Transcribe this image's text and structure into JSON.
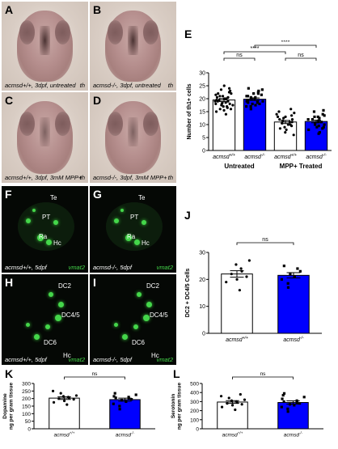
{
  "panels": {
    "A": {
      "letter": "A",
      "caption": "acmsd+/+, 3dpf, untreated",
      "stain": "th"
    },
    "B": {
      "letter": "B",
      "caption": "acmsd-/-, 3dpf, untreated",
      "stain": "th"
    },
    "C": {
      "letter": "C",
      "caption": "acmsd+/+, 3dpf, 3mM MPP+",
      "stain": "th"
    },
    "D": {
      "letter": "D",
      "caption": "acmsd-/-, 3dpf, 3mM MPP+",
      "stain": "th"
    },
    "F": {
      "letter": "F",
      "caption": "acmsd+/+, 5dpf",
      "stain": "vmat2",
      "labels": [
        "Te",
        "PT",
        "Ra",
        "Hc"
      ]
    },
    "G": {
      "letter": "G",
      "caption": "acmsd-/-, 5dpf",
      "stain": "vmat2",
      "labels": [
        "Te",
        "PT",
        "Ra",
        "Hc"
      ]
    },
    "H": {
      "letter": "H",
      "caption": "acmsd+/+, 5dpf",
      "stain": "vmat2",
      "labels": [
        "DC2",
        "DC4/5",
        "DC6",
        "Hc"
      ]
    },
    "I": {
      "letter": "I",
      "caption": "acmsd-/-, 5dpf",
      "stain": "vmat2",
      "labels": [
        "DC2",
        "DC4/5",
        "DC6",
        "Hc"
      ]
    }
  },
  "colors": {
    "wt": "#ffffff",
    "ko": "#0000ff",
    "outline": "#000000",
    "fluor": "#44d64a"
  },
  "chart_data": [
    {
      "letter": "E",
      "type": "bar",
      "ylabel": "Number of th1+ cells",
      "categories": [
        "acmsd+/+",
        "acmsd-/-",
        "acmsd+/+",
        "acmsd-/-"
      ],
      "groups": [
        "Untreated",
        "MPP+ Treated"
      ],
      "values": [
        19.5,
        19.8,
        11.0,
        11.2
      ],
      "errors": [
        0.6,
        0.5,
        0.6,
        0.5
      ],
      "colors": [
        "#ffffff",
        "#0000ff",
        "#ffffff",
        "#0000ff"
      ],
      "ylim": [
        0,
        30
      ],
      "yticks": [
        0,
        5,
        10,
        15,
        20,
        25,
        30
      ],
      "annotations": [
        {
          "from": 0,
          "to": 1,
          "text": "ns"
        },
        {
          "from": 2,
          "to": 3,
          "text": "ns"
        },
        {
          "from": 0,
          "to": 2,
          "text": "****"
        },
        {
          "from": 1,
          "to": 3,
          "text": "****"
        }
      ],
      "points": [
        [
          14,
          15,
          15.5,
          16,
          16,
          16.5,
          17,
          17,
          17.5,
          17.5,
          18,
          18,
          18,
          18.5,
          18.5,
          19,
          19,
          19,
          19.5,
          19.5,
          20,
          20,
          20,
          20.5,
          20.5,
          21,
          21,
          21.5,
          22,
          22,
          22.5,
          23,
          23.5,
          24,
          25
        ],
        [
          16,
          17,
          17,
          17.5,
          18,
          18,
          18.5,
          18.5,
          19,
          19,
          19,
          19.5,
          19.5,
          20,
          20,
          20,
          20.5,
          20.5,
          21,
          21,
          21.5,
          22,
          22,
          22.5,
          23,
          23.5,
          24
        ],
        [
          6,
          7,
          8,
          8.5,
          9,
          9.5,
          10,
          10,
          10.5,
          11,
          11,
          11.5,
          12,
          12,
          12.5,
          13,
          13,
          13.5,
          14,
          14.5,
          15,
          16
        ],
        [
          6.5,
          7,
          8,
          8.5,
          9,
          9,
          9.5,
          10,
          10,
          10.5,
          11,
          11,
          11.5,
          12,
          12,
          12.5,
          13,
          13,
          13.5,
          14,
          15,
          15.5
        ]
      ]
    },
    {
      "letter": "J",
      "type": "bar",
      "ylabel": "DC2 + DC4/5 Cells",
      "categories": [
        "acmsd+/+",
        "acmsd-/-"
      ],
      "values": [
        22,
        21.5
      ],
      "errors": [
        1.2,
        1.0
      ],
      "colors": [
        "#ffffff",
        "#0000ff"
      ],
      "ylim": [
        0,
        30
      ],
      "yticks": [
        0,
        10,
        20,
        30
      ],
      "annotations": [
        {
          "from": 0,
          "to": 1,
          "text": "ns"
        }
      ],
      "points": [
        [
          16,
          19,
          20,
          21,
          22,
          23,
          24,
          25.5,
          27
        ],
        [
          17,
          18.5,
          20,
          21,
          22,
          23,
          24,
          25
        ]
      ]
    },
    {
      "letter": "K",
      "type": "bar",
      "ylabel": "Dopamine / ng per gram tissue",
      "categories": [
        "acmsd+/+",
        "acmsd-/-"
      ],
      "values": [
        203,
        193
      ],
      "errors": [
        9,
        10
      ],
      "colors": [
        "#ffffff",
        "#0000ff"
      ],
      "ylim": [
        0,
        300
      ],
      "yticks": [
        0,
        50,
        100,
        150,
        200,
        250,
        300
      ],
      "annotations": [
        {
          "from": 0,
          "to": 1,
          "text": "ns"
        }
      ],
      "points": [
        [
          160,
          175,
          185,
          195,
          200,
          205,
          210,
          215,
          220,
          235,
          250
        ],
        [
          130,
          150,
          165,
          180,
          190,
          195,
          200,
          205,
          210,
          215,
          225,
          235
        ]
      ]
    },
    {
      "letter": "L",
      "type": "bar",
      "ylabel": "Serotonin / ng per gram tissue",
      "categories": [
        "acmsd+/+",
        "acmsd-/-"
      ],
      "values": [
        295,
        290
      ],
      "errors": [
        15,
        18
      ],
      "colors": [
        "#ffffff",
        "#0000ff"
      ],
      "ylim": [
        0,
        500
      ],
      "yticks": [
        0,
        100,
        200,
        300,
        400,
        500
      ],
      "annotations": [
        {
          "from": 0,
          "to": 1,
          "text": "ns"
        }
      ],
      "points": [
        [
          210,
          240,
          260,
          270,
          280,
          290,
          300,
          310,
          320,
          340,
          360,
          380
        ],
        [
          190,
          220,
          240,
          260,
          270,
          280,
          290,
          300,
          310,
          330,
          350,
          370,
          390
        ]
      ]
    }
  ]
}
